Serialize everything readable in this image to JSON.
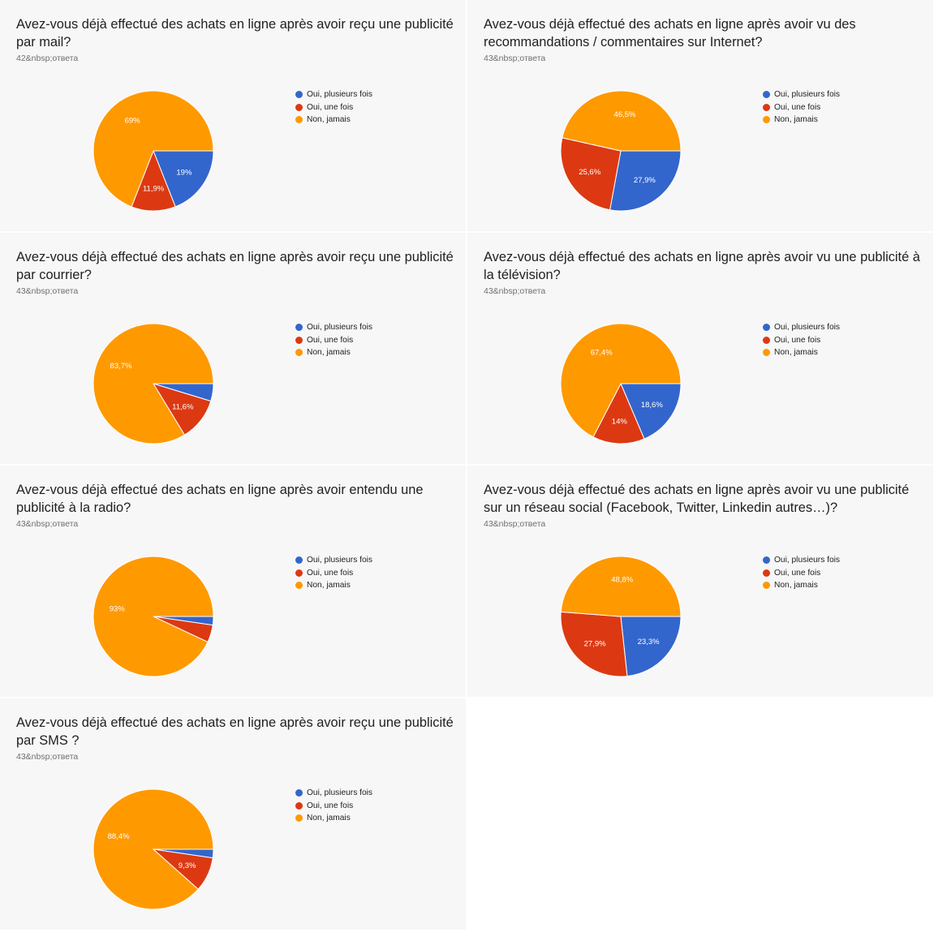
{
  "legend_labels": [
    "Oui, plusieurs fois",
    "Oui, une fois",
    "Non, jamais"
  ],
  "colors": {
    "oui_plusieurs_fois": "#3366cc",
    "oui_une_fois": "#dc3912",
    "non_jamais": "#ff9900",
    "panel_background": "#f7f7f7"
  },
  "chart_data": [
    {
      "type": "pie",
      "title": "Avez-vous déjà effectué des achats en ligne après avoir reçu une publicité par mail?",
      "responses": "42&nbsp;ответа",
      "categories": [
        "Oui, plusieurs fois",
        "Oui, une fois",
        "Non, jamais"
      ],
      "values": [
        19,
        11.9,
        69
      ],
      "data_labels": [
        "19%",
        "11,9%",
        "69%"
      ],
      "legend_position": "right"
    },
    {
      "type": "pie",
      "title": "Avez-vous déjà effectué des achats en ligne après avoir vu des recommandations / commentaires sur Internet?",
      "responses": "43&nbsp;ответа",
      "categories": [
        "Oui, plusieurs fois",
        "Oui, une fois",
        "Non, jamais"
      ],
      "values": [
        27.9,
        25.6,
        46.5
      ],
      "data_labels": [
        "27,9%",
        "25,6%",
        "46,5%"
      ],
      "legend_position": "right"
    },
    {
      "type": "pie",
      "title": "Avez-vous déjà effectué des achats en ligne après avoir reçu une publicité par courrier?",
      "responses": "43&nbsp;ответа",
      "categories": [
        "Oui, plusieurs fois",
        "Oui, une fois",
        "Non, jamais"
      ],
      "values": [
        4.7,
        11.6,
        83.7
      ],
      "data_labels": [
        "",
        "11,6%",
        "83,7%"
      ],
      "legend_position": "right"
    },
    {
      "type": "pie",
      "title": "Avez-vous déjà effectué des achats en ligne après avoir vu une publicité à la télévision?",
      "responses": "43&nbsp;ответа",
      "categories": [
        "Oui, plusieurs fois",
        "Oui, une fois",
        "Non, jamais"
      ],
      "values": [
        18.6,
        14,
        67.4
      ],
      "data_labels": [
        "18,6%",
        "14%",
        "67,4%"
      ],
      "legend_position": "right"
    },
    {
      "type": "pie",
      "title": "Avez-vous déjà effectué des achats en ligne après avoir entendu une publicité à la radio?",
      "responses": "43&nbsp;ответа",
      "categories": [
        "Oui, plusieurs fois",
        "Oui, une fois",
        "Non, jamais"
      ],
      "values": [
        2.3,
        4.7,
        93
      ],
      "data_labels": [
        "",
        "",
        "93%"
      ],
      "legend_position": "right"
    },
    {
      "type": "pie",
      "title": "Avez-vous déjà effectué des achats en ligne après avoir vu une publicité sur un réseau social (Facebook, Twitter, Linkedin autres…)?",
      "responses": "43&nbsp;ответа",
      "categories": [
        "Oui, plusieurs fois",
        "Oui, une fois",
        "Non, jamais"
      ],
      "values": [
        23.3,
        27.9,
        48.8
      ],
      "data_labels": [
        "23,3%",
        "27,9%",
        "48,8%"
      ],
      "legend_position": "right"
    },
    {
      "type": "pie",
      "title": "Avez-vous déjà effectué des achats en ligne après avoir reçu une publicité par SMS ?",
      "responses": "43&nbsp;ответа",
      "categories": [
        "Oui, plusieurs fois",
        "Oui, une fois",
        "Non, jamais"
      ],
      "values": [
        2.3,
        9.3,
        88.4
      ],
      "data_labels": [
        "",
        "9,3%",
        "88,4%"
      ],
      "legend_position": "right"
    }
  ]
}
